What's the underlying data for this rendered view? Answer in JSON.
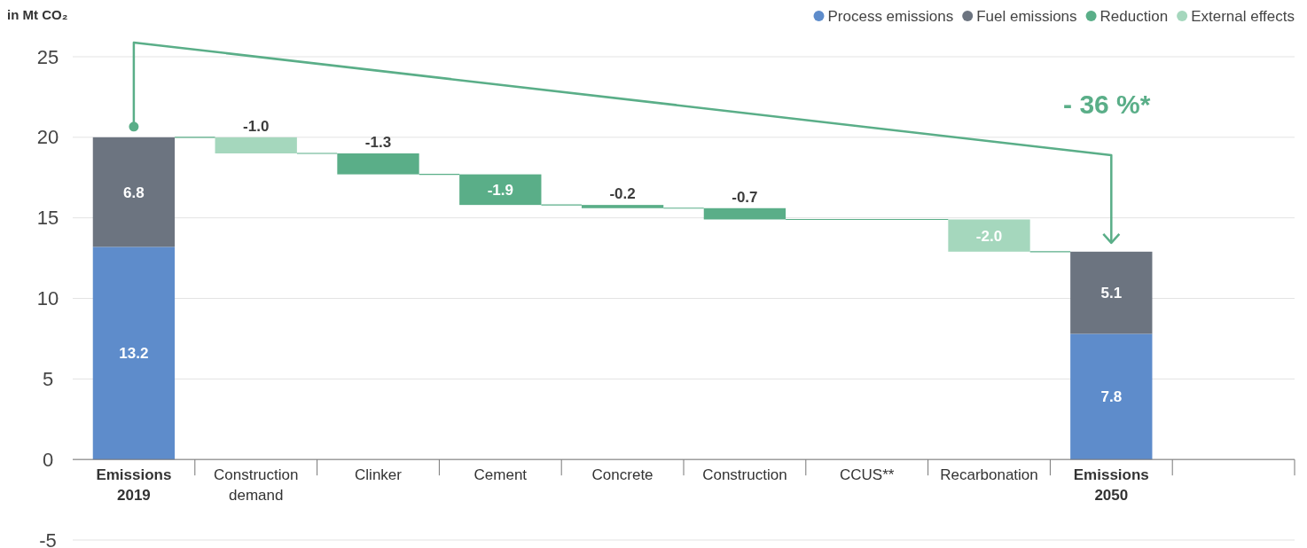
{
  "chart_data": {
    "type": "bar",
    "stacked": true,
    "ylabel": "in Mt CO₂",
    "categories": [
      "Emissions 2019",
      "Construction demand",
      "Clinker",
      "Cement",
      "Concrete",
      "Construction",
      "CCUS**",
      "Recarbonation",
      "Emissions 2050",
      null
    ],
    "series": [
      {
        "name": "Process emissions",
        "color": "#5e8ccb",
        "values": [
          13.2,
          null,
          null,
          null,
          null,
          null,
          null,
          null,
          7.8,
          null
        ],
        "value_labels": [
          "13.2",
          null,
          null,
          null,
          null,
          null,
          null,
          null,
          "7.8",
          null
        ]
      },
      {
        "name": "Fuel emissions",
        "color": "#6c7480",
        "values": [
          6.8,
          null,
          null,
          null,
          null,
          null,
          null,
          null,
          5.1,
          null
        ],
        "value_labels": [
          "6.8",
          null,
          null,
          null,
          null,
          null,
          null,
          null,
          "5.1",
          null
        ]
      },
      {
        "name": "Reduction",
        "color": "#5aae88",
        "base": [
          null,
          null,
          19.0,
          17.7,
          15.8,
          15.6,
          null,
          null,
          null,
          null
        ],
        "values": [
          null,
          null,
          -1.3,
          -1.9,
          -0.2,
          -0.7,
          null,
          null,
          null,
          null
        ],
        "value_labels": [
          null,
          null,
          "-1.3",
          "-1.9",
          "-0.2",
          "-0.7",
          null,
          null,
          null,
          null
        ]
      },
      {
        "name": "External effects",
        "color": "#a5d7bd",
        "base": [
          null,
          20,
          null,
          null,
          null,
          null,
          null,
          14.9,
          null,
          null
        ],
        "values": [
          null,
          -1.0,
          null,
          null,
          null,
          null,
          null,
          -2.0,
          null,
          null
        ],
        "value_labels": [
          null,
          "-1.0",
          null,
          null,
          null,
          null,
          null,
          "-2.0",
          null,
          null
        ]
      }
    ],
    "ylim": [
      -5,
      25
    ],
    "yticks": [
      -5,
      0,
      5,
      10,
      15,
      20,
      25
    ],
    "grid": "y",
    "legend": "top right",
    "annotations": [
      "- 36 %*"
    ]
  }
}
